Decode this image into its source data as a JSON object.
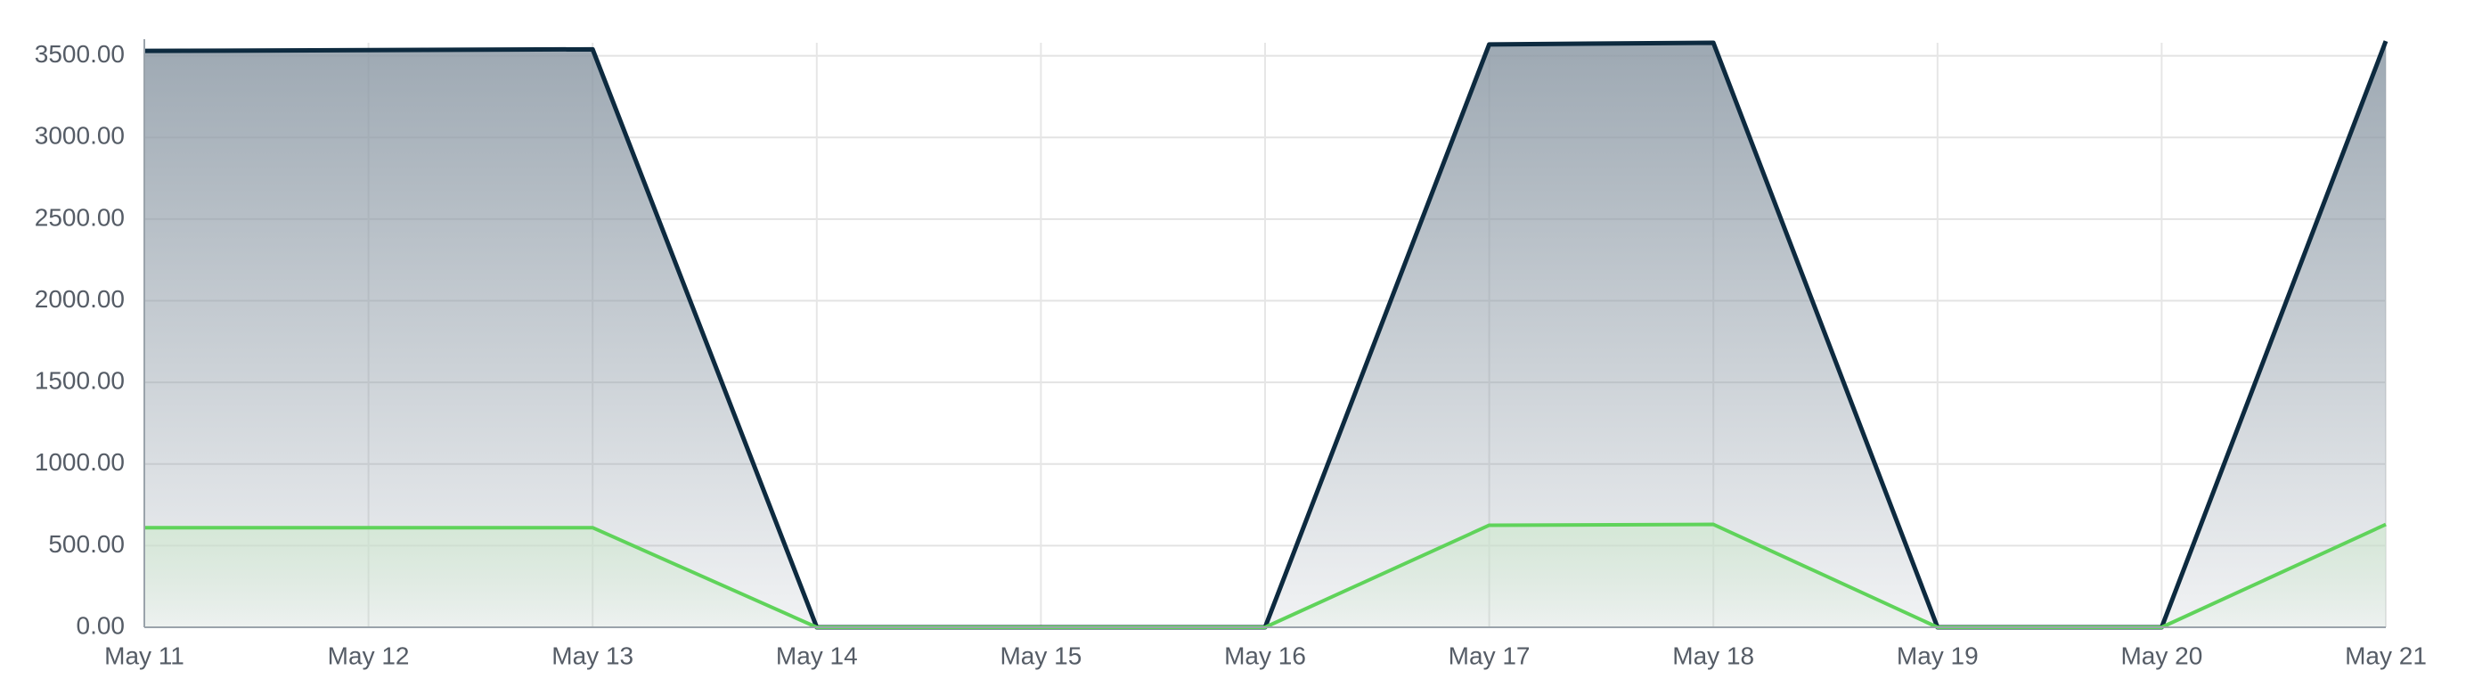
{
  "chart_data": {
    "type": "area",
    "categories": [
      "May 11",
      "May 12",
      "May 13",
      "May 14",
      "May 15",
      "May 16",
      "May 17",
      "May 18",
      "May 19",
      "May 20",
      "May 21"
    ],
    "series": [
      {
        "color": "#0d2a3f",
        "fill": "#8c99a5",
        "values": [
          3530,
          3535,
          3540,
          0,
          0,
          0,
          3570,
          3580,
          0,
          0,
          3590
        ]
      },
      {
        "color": "#5fd35a",
        "fill": "#cfe8cf",
        "values": [
          610,
          610,
          610,
          0,
          0,
          0,
          625,
          630,
          0,
          0,
          630
        ]
      }
    ],
    "ylim": [
      0,
      3580
    ],
    "yticks": [
      {
        "value": 0,
        "label": "0.00"
      },
      {
        "value": 500,
        "label": "500.00"
      },
      {
        "value": 1000,
        "label": "1000.00"
      },
      {
        "value": 1500,
        "label": "1500.00"
      },
      {
        "value": 2000,
        "label": "2000.00"
      },
      {
        "value": 2500,
        "label": "2500.00"
      },
      {
        "value": 3000,
        "label": "3000.00"
      },
      {
        "value": 3500,
        "label": "3500.00"
      }
    ],
    "grid": true
  }
}
